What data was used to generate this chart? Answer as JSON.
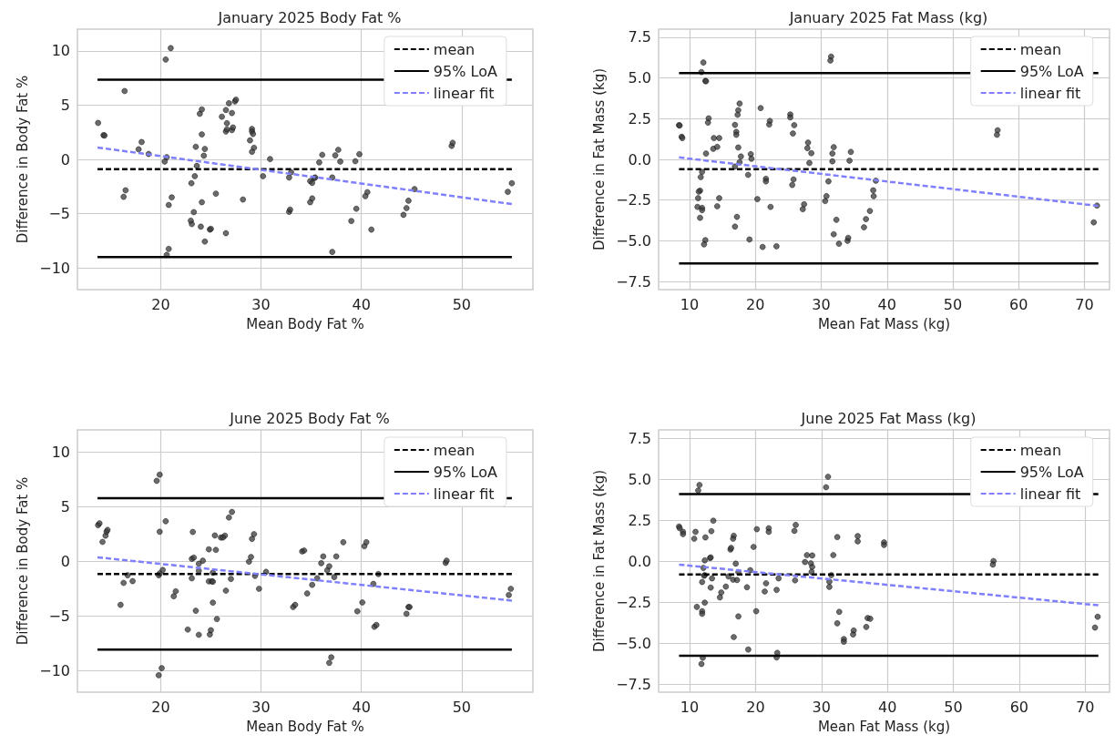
{
  "chart_data": [
    {
      "type": "scatter",
      "title": "January 2025 Body Fat %",
      "xlabel": "Mean Body Fat %",
      "ylabel": "Difference in Body Fat %",
      "xlim": [
        11.7,
        57.1
      ],
      "ylim": [
        -12,
        12
      ],
      "xticks": [
        20,
        30,
        40,
        50
      ],
      "yticks": [
        {
          "value": -10,
          "label": "−10"
        },
        {
          "value": -5,
          "label": "−5"
        },
        0,
        5,
        10
      ],
      "grid": true,
      "legend": "top right",
      "marker": "circle",
      "series": [
        {
          "color": "#3a3a3a",
          "x": [
            13.76,
            14.3,
            14.4,
            16.4,
            16.3,
            16.5,
            17.8,
            18.1,
            18.8,
            20.4,
            20.6,
            20.5,
            21.0,
            20.8,
            21.1,
            20.6,
            20.8,
            23.0,
            23.1,
            23.3,
            23.06,
            23.4,
            23.6,
            23.5,
            23.9,
            24.1,
            24.1,
            24.4,
            24.3,
            24.1,
            24.0,
            24.4,
            24.9,
            25.0,
            25.5,
            26.1,
            26.5,
            26.8,
            27.4,
            27.5,
            27.1,
            26.6,
            26.5,
            26.6,
            27.1,
            27.2,
            26.5,
            28.2,
            29.1,
            29.1,
            29.2,
            28.9,
            29.3,
            29.1,
            30.2,
            30.9,
            32.8,
            32.8,
            32.9,
            33.0,
            34.9,
            35.1,
            34.9,
            35.1,
            35.3,
            35.4,
            35.8,
            36.1,
            37.1,
            37.1,
            37.4,
            37.7,
            37.9,
            39.0,
            39.4,
            39.5,
            39.8,
            40.4,
            40.6,
            41.0,
            44.2,
            44.5,
            44.7,
            45.3,
            49.0,
            49.1,
            54.6,
            55.0
          ],
          "values": [
            3.36,
            2.23,
            2.2,
            6.3,
            -3.45,
            -2.85,
            0.93,
            1.6,
            0.5,
            -0.2,
            0.2,
            9.2,
            10.25,
            -4.2,
            -3.5,
            -8.8,
            -8.25,
            -5.65,
            -5.96,
            -4.86,
            -2.2,
            -1.55,
            -0.6,
            1.16,
            4.2,
            4.6,
            2.3,
            0.96,
            0.34,
            -3.95,
            -6.2,
            -7.57,
            -6.47,
            -6.4,
            -3.16,
            3.93,
            4.55,
            5.17,
            5.34,
            5.5,
            4.27,
            3.33,
            2.57,
            2.77,
            2.7,
            2.94,
            -6.8,
            -3.7,
            2.8,
            2.57,
            2.34,
            1.75,
            1.07,
            0.7,
            -1.55,
            0.03,
            -1.67,
            -4.83,
            -4.63,
            -1.19,
            -3.95,
            -3.6,
            -2.0,
            -2.17,
            -1.72,
            -1.67,
            -0.28,
            0.42,
            -8.53,
            -1.67,
            0.37,
            0.88,
            -0.2,
            -5.68,
            -0.17,
            -4.55,
            0.48,
            -3.39,
            -3.02,
            -6.47,
            -5.11,
            -4.49,
            -3.81,
            -2.74,
            1.24,
            1.53,
            -2.99,
            -2.2
          ]
        },
        {
          "type": "line",
          "name": "mean",
          "color": "#000000",
          "line_style": "dashed",
          "marker": "none",
          "x": [
            13.7,
            55.0
          ],
          "values": [
            -0.9,
            -0.9
          ]
        },
        {
          "type": "line",
          "name": "95% LoA",
          "color": "#000000",
          "line_style": "solid",
          "marker": "none",
          "x": [
            13.7,
            55.0
          ],
          "values": [
            7.34,
            7.34
          ]
        },
        {
          "type": "line",
          "color": "#000000",
          "line_style": "solid",
          "marker": "none",
          "x": [
            13.7,
            55.0
          ],
          "values": [
            -9.0,
            -9.0
          ]
        },
        {
          "type": "line",
          "name": "linear fit",
          "color": "#8080ff",
          "line_style": "dashed",
          "marker": "none",
          "x": [
            13.7,
            55.0
          ],
          "values": [
            1.1,
            -4.12
          ]
        }
      ]
    },
    {
      "type": "scatter",
      "title": "January 2025 Fat Mass (kg)",
      "xlabel": "Mean Fat Mass (kg)",
      "ylabel": "Difference in Fat Mass (kg)",
      "xlim": [
        5.3,
        73.8
      ],
      "ylim": [
        -8,
        8
      ],
      "xticks": [
        10,
        20,
        30,
        40,
        50,
        60,
        70
      ],
      "yticks": [
        {
          "value": -7.5,
          "label": "−7.5"
        },
        {
          "value": -5,
          "label": "−5.0"
        },
        {
          "value": -2.5,
          "label": "−2.5"
        },
        {
          "value": 0,
          "label": "0.0"
        },
        2.5,
        {
          "value": 5,
          "label": "5.0"
        },
        7.5
      ],
      "grid": true,
      "legend": "top right",
      "marker": "circle",
      "series": [
        {
          "color": "#3a3a3a",
          "x": [
            8.4,
            8.5,
            8.8,
            8.9,
            12.1,
            11.8,
            12.4,
            12.5,
            12.9,
            12.8,
            12.5,
            13.6,
            13.7,
            14.2,
            14.5,
            14.5,
            14.2,
            11.9,
            11.7,
            11.6,
            11.4,
            11.3,
            11.2,
            11.9,
            11.9,
            11.6,
            12.4,
            12.2,
            17.6,
            17.4,
            17.3,
            16.9,
            17.1,
            17.1,
            17.4,
            17.8,
            17.6,
            16.9,
            17.2,
            16.9,
            19.3,
            19.4,
            18.9,
            19.1,
            20.8,
            20.3,
            21.1,
            22.2,
            22.1,
            21.6,
            21.6,
            22.3,
            23.2,
            25.3,
            25.3,
            25.9,
            25.7,
            25.8,
            25.6,
            27.4,
            27.2,
            28.0,
            27.9,
            28.5,
            28.2,
            31.5,
            31.4,
            31.9,
            31.7,
            31.7,
            31.1,
            30.8,
            30.6,
            32.3,
            31.9,
            32.7,
            34.0,
            34.1,
            34.5,
            34.3,
            38.3,
            37.9,
            37.97,
            37.4,
            36.8,
            36.5,
            56.8,
            56.7,
            71.9,
            71.4
          ],
          "values": [
            2.1,
            2.08,
            1.39,
            1.31,
            5.95,
            5.36,
            4.82,
            4.8,
            2.52,
            2.26,
            0.36,
            0.65,
            1.31,
            0.77,
            1.31,
            -2.38,
            -2.88,
            -0.77,
            -1.09,
            -1.92,
            -1.98,
            -2.38,
            -2.92,
            -2.98,
            -3.12,
            -3.59,
            -4.96,
            -5.22,
            3.43,
            3.02,
            2.74,
            2.12,
            1.69,
            1.51,
            0.73,
            0.18,
            -0.18,
            -0.44,
            -3.53,
            -4.13,
            0.32,
            0.04,
            -0.95,
            -4.92,
            3.15,
            -2.44,
            -5.38,
            2.36,
            2.14,
            -1.19,
            -1.35,
            -2.92,
            -5.34,
            2.76,
            2.58,
            2.1,
            1.59,
            -1.23,
            -1.57,
            -2.76,
            -3.06,
            1.03,
            0.69,
            0.38,
            -0.22,
            6.31,
            6.07,
            0.75,
            0.36,
            -0.12,
            -1.35,
            -2.26,
            -2.56,
            -3.71,
            -4.6,
            -5.18,
            -5.0,
            -4.82,
            0.46,
            -0.08,
            -1.31,
            -1.9,
            -2.26,
            -3.17,
            -3.67,
            -4.17,
            1.79,
            1.51,
            -2.84,
            -3.87
          ]
        },
        {
          "type": "line",
          "name": "mean",
          "color": "#000000",
          "line_style": "dashed",
          "marker": "none",
          "x": [
            8.4,
            72.1
          ],
          "values": [
            -0.6,
            -0.6
          ]
        },
        {
          "type": "line",
          "name": "95% LoA",
          "color": "#000000",
          "line_style": "solid",
          "marker": "none",
          "x": [
            8.4,
            72.1
          ],
          "values": [
            5.3,
            5.3
          ]
        },
        {
          "type": "line",
          "color": "#000000",
          "line_style": "solid",
          "marker": "none",
          "x": [
            8.4,
            72.1
          ],
          "values": [
            -6.39,
            -6.39
          ]
        },
        {
          "type": "line",
          "name": "linear fit",
          "color": "#8080ff",
          "line_style": "dashed",
          "marker": "none",
          "x": [
            8.4,
            72.1
          ],
          "values": [
            0.12,
            -2.86
          ]
        }
      ]
    },
    {
      "type": "scatter",
      "title": "June 2025 Body Fat %",
      "xlabel": "Mean Body Fat %",
      "ylabel": "Difference in Body Fat %",
      "xlim": [
        11.7,
        57.1
      ],
      "ylim": [
        -12,
        12
      ],
      "xticks": [
        20,
        30,
        40,
        50
      ],
      "yticks": [
        {
          "value": -10,
          "label": "−10"
        },
        {
          "value": -5,
          "label": "−5"
        },
        0,
        5,
        10
      ],
      "grid": true,
      "legend": "top right",
      "marker": "circle",
      "series": [
        {
          "color": "#3a3a3a",
          "x": [
            13.76,
            13.9,
            14.2,
            14.5,
            14.6,
            14.7,
            16.0,
            16.3,
            16.7,
            17.2,
            19.6,
            19.9,
            19.9,
            20.5,
            19.8,
            19.9,
            20.2,
            19.8,
            20.1,
            21.3,
            21.5,
            22.7,
            23.2,
            23.1,
            23.3,
            23.1,
            23.5,
            23.8,
            23.8,
            23.8,
            24.2,
            24.8,
            25.5,
            24.9,
            25.0,
            25.2,
            25.2,
            24.8,
            25.1,
            25.2,
            25.6,
            25.4,
            26.0,
            26.4,
            26.2,
            26.5,
            26.8,
            27.1,
            27.0,
            28.8,
            29.0,
            29.1,
            29.3,
            29.4,
            29.8,
            30.5,
            33.2,
            33.4,
            34.1,
            34.3,
            34.6,
            35.1,
            35.6,
            36.0,
            36.2,
            36.6,
            36.8,
            37.3,
            37.5,
            36.8,
            37.0,
            38.2,
            39.6,
            40.1,
            40.3,
            40.5,
            41.2,
            41.3,
            41.5,
            41.7,
            44.5,
            44.7,
            44.8,
            48.4,
            48.5,
            54.7,
            54.9
          ],
          "values": [
            3.28,
            3.45,
            1.75,
            2.32,
            2.68,
            2.85,
            -4.01,
            -2.0,
            -1.3,
            -1.84,
            7.34,
            7.9,
            2.68,
            3.64,
            -1.3,
            -1.13,
            -0.82,
            -10.45,
            -9.8,
            -3.22,
            -2.77,
            -6.27,
            2.66,
            0.2,
            0.31,
            -1.58,
            -4.55,
            -6.75,
            -0.25,
            -0.9,
            0.03,
            1.07,
            1.02,
            -6.72,
            -6.33,
            -3.81,
            -1.07,
            -1.86,
            -1.86,
            -1.89,
            -5.31,
            2.34,
            2.15,
            2.32,
            2.15,
            -2.71,
            3.98,
            4.49,
            -1.64,
            -0.06,
            0.37,
            2.03,
            2.46,
            -1.36,
            -2.54,
            -0.99,
            -4.21,
            -4.01,
            0.88,
            0.96,
            -2.97,
            -2.18,
            -1.58,
            -0.2,
            0.42,
            -0.85,
            -0.48,
            -1.47,
            0.42,
            -9.32,
            -8.81,
            1.72,
            -4.6,
            -3.79,
            1.36,
            1.72,
            -2.09,
            -6.02,
            -5.85,
            -1.19,
            -4.83,
            -4.21,
            -4.21,
            -0.17,
            0.03,
            -3.11,
            -2.54
          ]
        },
        {
          "type": "line",
          "name": "mean",
          "color": "#000000",
          "line_style": "dashed",
          "marker": "none",
          "x": [
            13.7,
            55.0
          ],
          "values": [
            -1.19,
            -1.19
          ]
        },
        {
          "type": "line",
          "name": "95% LoA",
          "color": "#000000",
          "line_style": "solid",
          "marker": "none",
          "x": [
            13.7,
            55.0
          ],
          "values": [
            5.76,
            5.76
          ]
        },
        {
          "type": "line",
          "color": "#000000",
          "line_style": "solid",
          "marker": "none",
          "x": [
            13.7,
            55.0
          ],
          "values": [
            -8.1,
            -8.1
          ]
        },
        {
          "type": "line",
          "name": "linear fit",
          "color": "#8080ff",
          "line_style": "dashed",
          "marker": "none",
          "x": [
            13.7,
            55.0
          ],
          "values": [
            0.34,
            -3.62
          ]
        }
      ]
    },
    {
      "type": "scatter",
      "title": "June 2025 Fat Mass (kg)",
      "xlabel": "Mean Fat Mass (kg)",
      "ylabel": "Difference in Fat Mass (kg)",
      "xlim": [
        5.3,
        73.7
      ],
      "ylim": [
        -8,
        8
      ],
      "xticks": [
        10,
        20,
        30,
        40,
        50,
        60,
        70
      ],
      "yticks": [
        {
          "value": -7.5,
          "label": "−7.5"
        },
        {
          "value": -5,
          "label": "−5.0"
        },
        {
          "value": -2.5,
          "label": "−2.5"
        },
        {
          "value": 0,
          "label": "0.0"
        },
        2.5,
        {
          "value": 5,
          "label": "5.0"
        },
        7.5
      ],
      "grid": true,
      "legend": "top right",
      "marker": "circle",
      "series": [
        {
          "color": "#3a3a3a",
          "x": [
            8.4,
            8.5,
            9.0,
            9.0,
            10.7,
            10.9,
            11.5,
            11.3,
            12.4,
            13.3,
            13.6,
            12.3,
            13.1,
            13.2,
            12.1,
            12.3,
            12.2,
            11.9,
            13.4,
            13.2,
            11.1,
            12.3,
            11.9,
            11.9,
            14.8,
            14.6,
            15.5,
            12.0,
            11.8,
            16.2,
            16.3,
            16.7,
            16.6,
            15.9,
            16.6,
            17.2,
            17.0,
            17.4,
            17.4,
            16.7,
            18.7,
            19.2,
            19.7,
            18.9,
            20.2,
            20.1,
            21.4,
            21.6,
            22.0,
            22.0,
            23.2,
            23.5,
            23.3,
            23.2,
            26.1,
            25.9,
            26.0,
            27.8,
            28.6,
            27.5,
            28.4,
            28.6,
            28.5,
            31.0,
            30.7,
            31.8,
            31.2,
            31.2,
            31.5,
            32.4,
            32.7,
            32.4,
            33.4,
            33.4,
            34.9,
            34.8,
            35.5,
            35.5,
            36.8,
            37.0,
            37.4,
            39.5,
            39.5,
            56.1,
            56.0,
            71.9,
            71.5
          ],
          "values": [
            2.1,
            2.0,
            1.78,
            1.64,
            1.36,
            1.78,
            4.64,
            4.3,
            1.44,
            1.82,
            2.46,
            0.04,
            0.18,
            0.22,
            -0.42,
            -0.86,
            -0.9,
            -1.28,
            -1.06,
            -1.62,
            -2.8,
            -2.54,
            -3.06,
            -3.22,
            -1.92,
            -2.22,
            -1.56,
            -5.9,
            -6.28,
            0.7,
            0.8,
            1.54,
            1.36,
            -0.94,
            -1.14,
            -1.16,
            -0.16,
            -0.68,
            -3.38,
            -4.64,
            -1.6,
            -0.56,
            0.86,
            -5.4,
            1.94,
            -3.06,
            -1.86,
            -1.36,
            2.0,
            1.78,
            -1.76,
            -1.06,
            -5.6,
            -5.88,
            2.2,
            1.84,
            -1.18,
            0.36,
            0.34,
            -0.06,
            -0.14,
            -0.36,
            -0.66,
            5.14,
            4.5,
            0.36,
            -1.26,
            -1.58,
            -0.86,
            1.46,
            -3.1,
            -3.8,
            -4.76,
            -4.92,
            -4.24,
            -4.48,
            1.52,
            1.2,
            -4.02,
            -3.48,
            -3.52,
            1.14,
            0.98,
            0.0,
            -0.22,
            -3.4,
            -4.06
          ]
        },
        {
          "type": "line",
          "name": "mean",
          "color": "#000000",
          "line_style": "dashed",
          "marker": "none",
          "x": [
            8.4,
            72.0
          ],
          "values": [
            -0.82,
            -0.82
          ]
        },
        {
          "type": "line",
          "name": "95% LoA",
          "color": "#000000",
          "line_style": "solid",
          "marker": "none",
          "x": [
            8.4,
            72.0
          ],
          "values": [
            4.08,
            4.08
          ]
        },
        {
          "type": "line",
          "color": "#000000",
          "line_style": "solid",
          "marker": "none",
          "x": [
            8.4,
            72.0
          ],
          "values": [
            -5.78,
            -5.78
          ]
        },
        {
          "type": "line",
          "name": "linear fit",
          "color": "#8080ff",
          "line_style": "dashed",
          "marker": "none",
          "x": [
            8.4,
            72.0
          ],
          "values": [
            -0.22,
            -2.7
          ]
        }
      ]
    }
  ]
}
